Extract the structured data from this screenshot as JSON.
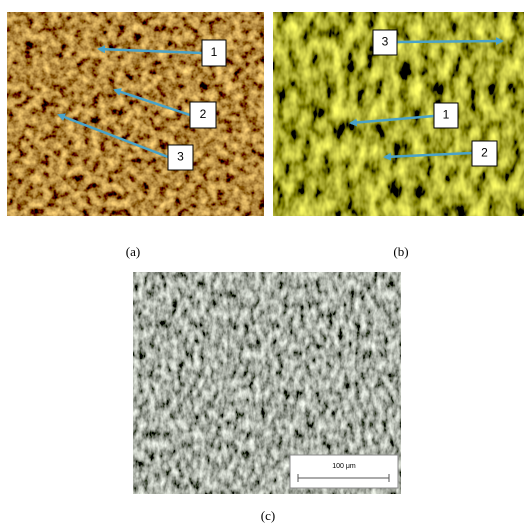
{
  "panels": [
    {
      "caption": "(a)",
      "annotations": [
        "1",
        "2",
        "3"
      ]
    },
    {
      "caption": "(b)",
      "annotations": [
        "3",
        "1",
        "2"
      ]
    },
    {
      "caption": "(c)",
      "scale_bar": "100 μm"
    }
  ]
}
